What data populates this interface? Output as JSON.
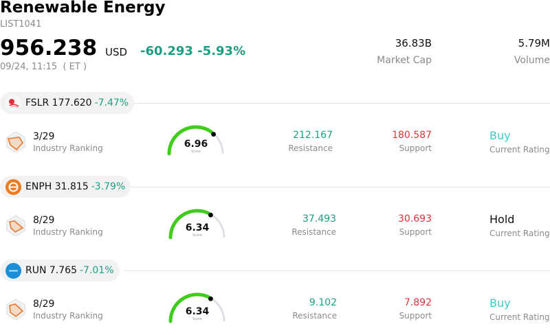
{
  "header": {
    "title": "Renewable Energy",
    "code": "LIST1041",
    "price": "956.238",
    "currency": "USD",
    "change": "-60.293 -5.93%",
    "timestamp": "09/24, 11:15  ( ET )",
    "market_cap": {
      "value": "36.83B",
      "label": "Market Cap"
    },
    "volume": {
      "value": "5.79M",
      "label": "Volume"
    }
  },
  "colors": {
    "positive_green": "#1a9f82",
    "negative_red": "#e0323c",
    "buy_teal": "#3ec8c8",
    "gauge_green": "#3fcc1a",
    "gauge_track": "#dedee6"
  },
  "stocks": [
    {
      "ticker": "FSLR 177.620",
      "change": "-7.47%",
      "logo_icon": "fslr-logo-icon",
      "ranking": {
        "value": "3/29",
        "label": "Industry Ranking"
      },
      "score": {
        "value": 6.96,
        "label": "6.96",
        "sub": "Score"
      },
      "resistance": {
        "value": "212.167",
        "label": "Resistance"
      },
      "support": {
        "value": "180.587",
        "label": "Support"
      },
      "rating": {
        "value": "Buy",
        "label": "Current Rating",
        "color": "#3ec8c8"
      }
    },
    {
      "ticker": "ENPH 31.815",
      "change": "-3.79%",
      "logo_icon": "enph-logo-icon",
      "ranking": {
        "value": "8/29",
        "label": "Industry Ranking"
      },
      "score": {
        "value": 6.34,
        "label": "6.34",
        "sub": "Score"
      },
      "resistance": {
        "value": "37.493",
        "label": "Resistance"
      },
      "support": {
        "value": "30.693",
        "label": "Support"
      },
      "rating": {
        "value": "Hold",
        "label": "Current Rating",
        "color": "#111111"
      }
    },
    {
      "ticker": "RUN 7.765",
      "change": "-7.01%",
      "logo_icon": "run-logo-icon",
      "ranking": {
        "value": "8/29",
        "label": "Industry Ranking"
      },
      "score": {
        "value": 6.34,
        "label": "6.34",
        "sub": "Score"
      },
      "resistance": {
        "value": "9.102",
        "label": "Resistance"
      },
      "support": {
        "value": "7.892",
        "label": "Support"
      },
      "rating": {
        "value": "Buy",
        "label": "Current Rating",
        "color": "#3ec8c8"
      }
    }
  ]
}
